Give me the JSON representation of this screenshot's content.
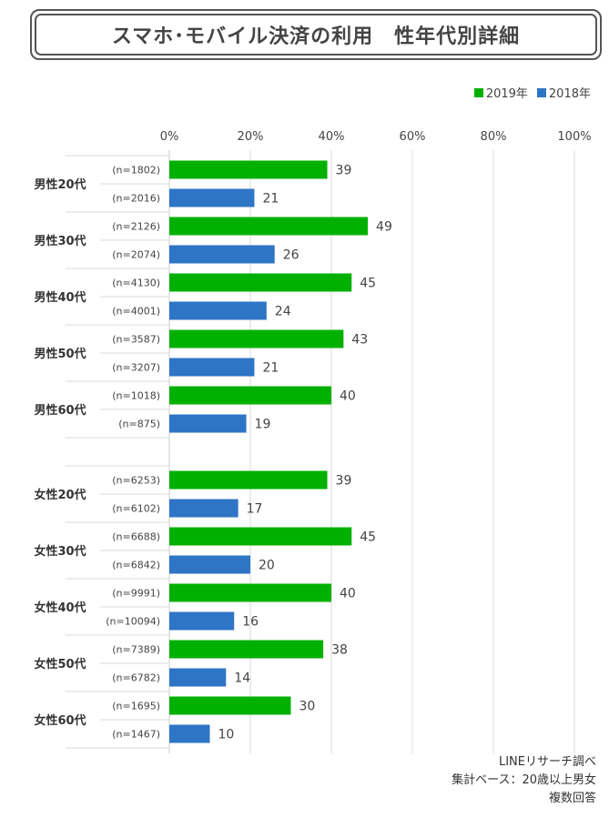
{
  "title": "スマホ･モバイル決済の利用　性年代別詳細",
  "legend": [
    {
      "label": "2019年",
      "color": "#00b000"
    },
    {
      "label": "2018年",
      "color": "#2e75c6"
    }
  ],
  "footnotes": [
    "LINEリサーチ調べ",
    "集計ベース：20歳以上男女",
    "複数回答"
  ],
  "chart_data": {
    "type": "bar",
    "orientation": "horizontal",
    "xlim": [
      0,
      100
    ],
    "x_tick_labels": [
      "0%",
      "20%",
      "40%",
      "60%",
      "80%",
      "100%"
    ],
    "grid": true,
    "legend_position": "top-right",
    "groups": [
      {
        "label": "男性20代",
        "rows": [
          {
            "series": "2019年",
            "n": "(n=1802)",
            "value": 39
          },
          {
            "series": "2018年",
            "n": "(n=2016)",
            "value": 21
          }
        ]
      },
      {
        "label": "男性30代",
        "rows": [
          {
            "series": "2019年",
            "n": "(n=2126)",
            "value": 49
          },
          {
            "series": "2018年",
            "n": "(n=2074)",
            "value": 26
          }
        ]
      },
      {
        "label": "男性40代",
        "rows": [
          {
            "series": "2019年",
            "n": "(n=4130)",
            "value": 45
          },
          {
            "series": "2018年",
            "n": "(n=4001)",
            "value": 24
          }
        ]
      },
      {
        "label": "男性50代",
        "rows": [
          {
            "series": "2019年",
            "n": "(n=3587)",
            "value": 43
          },
          {
            "series": "2018年",
            "n": "(n=3207)",
            "value": 21
          }
        ]
      },
      {
        "label": "男性60代",
        "rows": [
          {
            "series": "2019年",
            "n": "(n=1018)",
            "value": 40
          },
          {
            "series": "2018年",
            "n": "(n=875)",
            "value": 19
          }
        ]
      },
      {
        "label": "女性20代",
        "rows": [
          {
            "series": "2019年",
            "n": "(n=6253)",
            "value": 39
          },
          {
            "series": "2018年",
            "n": "(n=6102)",
            "value": 17
          }
        ]
      },
      {
        "label": "女性30代",
        "rows": [
          {
            "series": "2019年",
            "n": "(n=6688)",
            "value": 45
          },
          {
            "series": "2018年",
            "n": "(n=6842)",
            "value": 20
          }
        ]
      },
      {
        "label": "女性40代",
        "rows": [
          {
            "series": "2019年",
            "n": "(n=9991)",
            "value": 40
          },
          {
            "series": "2018年",
            "n": "(n=10094)",
            "value": 16
          }
        ]
      },
      {
        "label": "女性50代",
        "rows": [
          {
            "series": "2019年",
            "n": "(n=7389)",
            "value": 38
          },
          {
            "series": "2018年",
            "n": "(n=6782)",
            "value": 14
          }
        ]
      },
      {
        "label": "女性60代",
        "rows": [
          {
            "series": "2019年",
            "n": "(n=1695)",
            "value": 30
          },
          {
            "series": "2018年",
            "n": "(n=1467)",
            "value": 10
          }
        ]
      }
    ]
  }
}
